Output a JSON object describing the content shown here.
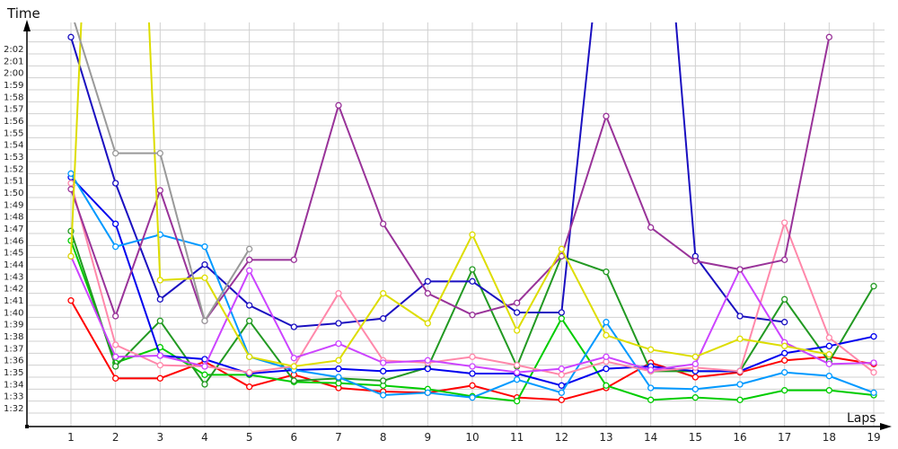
{
  "chart_data": {
    "type": "line",
    "title": "",
    "xlabel": "Laps",
    "ylabel": "Time",
    "x": [
      1,
      2,
      3,
      4,
      5,
      6,
      7,
      8,
      9,
      10,
      11,
      12,
      13,
      14,
      15,
      16,
      17,
      18,
      19
    ],
    "xlim": [
      1,
      19
    ],
    "ylim_seconds": [
      91,
      125
    ],
    "grid": true,
    "y_ticks": [
      "1:32",
      "1:33",
      "1:34",
      "1:35",
      "1:36",
      "1:37",
      "1:38",
      "1:39",
      "1:40",
      "1:41",
      "1:42",
      "1:43",
      "1:44",
      "1:45",
      "1:46",
      "1:47",
      "1:48",
      "1:49",
      "1:50",
      "1:51",
      "1:52",
      "1:53",
      "1:54",
      "1:55",
      "1:56",
      "1:57",
      "1:58",
      "1:59",
      "2:00",
      "2:01",
      "2:02"
    ],
    "y_tick_seconds": [
      92,
      93,
      94,
      95,
      96,
      97,
      98,
      99,
      100,
      101,
      102,
      103,
      104,
      105,
      106,
      107,
      108,
      109,
      110,
      111,
      112,
      113,
      114,
      115,
      116,
      117,
      118,
      119,
      120,
      121,
      122
    ],
    "value_unit": "seconds",
    "series": [
      {
        "color": "#ff0000",
        "values": [
          101.4,
          94.9,
          94.9,
          96.3,
          94.2,
          95.2,
          94.1,
          93.8,
          93.7,
          94.3,
          93.3,
          93.1,
          94.1,
          96.2,
          95.0,
          95.4,
          96.4,
          96.7,
          96.1
        ]
      },
      {
        "color": "#00cc00",
        "values": [
          106.4,
          96.2,
          97.5,
          95.2,
          95.2,
          94.6,
          94.5,
          94.3,
          94.0,
          93.4,
          93.0,
          99.9,
          94.3,
          93.1,
          93.3,
          93.1,
          93.9,
          93.9,
          93.5
        ]
      },
      {
        "color": "#229922",
        "values": [
          107.2,
          95.9,
          99.7,
          94.4,
          99.7,
          94.7,
          94.9,
          94.7,
          95.8,
          104.0,
          95.9,
          105.1,
          103.8,
          95.5,
          95.5,
          95.5,
          101.5,
          96.3,
          102.6
        ]
      },
      {
        "color": "#1a0fc0",
        "values": [
          123.4,
          111.2,
          101.5,
          104.4,
          101.0,
          99.2,
          99.5,
          99.9,
          103.0,
          103.0,
          100.4,
          100.4,
          135.7,
          150.0,
          105.1,
          100.1,
          99.6,
          null,
          null
        ]
      },
      {
        "color": "#0000ee",
        "values": [
          111.7,
          107.8,
          96.8,
          96.5,
          95.3,
          95.6,
          95.7,
          95.5,
          95.7,
          95.3,
          95.3,
          94.3,
          95.7,
          95.9,
          95.5,
          95.5,
          97.0,
          97.6,
          98.4
        ]
      },
      {
        "color": "#0099ff",
        "values": [
          112.0,
          105.9,
          106.9,
          105.9,
          96.7,
          95.6,
          95.0,
          93.5,
          93.7,
          93.3,
          94.8,
          93.7,
          99.6,
          94.1,
          94.0,
          94.4,
          95.4,
          95.1,
          93.7
        ]
      },
      {
        "color": "#ff88aa",
        "values": [
          111.2,
          97.7,
          96.0,
          95.9,
          95.4,
          95.9,
          102.0,
          96.4,
          96.2,
          96.7,
          96.0,
          95.2,
          96.3,
          95.5,
          95.8,
          95.5,
          107.9,
          98.3,
          95.4
        ]
      },
      {
        "color": "#cc44ff",
        "values": [
          105.1,
          96.7,
          96.8,
          95.9,
          103.9,
          96.6,
          97.8,
          96.2,
          96.4,
          95.9,
          95.4,
          95.7,
          96.7,
          95.6,
          96.1,
          104.0,
          97.9,
          96.1,
          96.2
        ]
      },
      {
        "color": "#993399",
        "values": [
          110.7,
          100.1,
          110.6,
          99.7,
          104.8,
          104.8,
          117.7,
          107.8,
          102.0,
          100.2,
          101.2,
          105.1,
          116.8,
          107.5,
          104.7,
          104.0,
          104.8,
          123.4,
          null
        ]
      },
      {
        "color": "#dddd00",
        "values": [
          105.1,
          189.5,
          103.1,
          103.3,
          96.7,
          95.9,
          96.4,
          102.0,
          99.5,
          106.9,
          98.9,
          105.7,
          98.5,
          97.3,
          96.7,
          98.2,
          97.6,
          96.9,
          null
        ]
      },
      {
        "color": "#999999",
        "values": [
          125.6,
          113.7,
          113.7,
          99.7,
          105.7,
          null,
          null,
          null,
          null,
          null,
          null,
          null,
          null,
          null,
          null,
          null,
          null,
          null,
          null
        ]
      }
    ]
  }
}
